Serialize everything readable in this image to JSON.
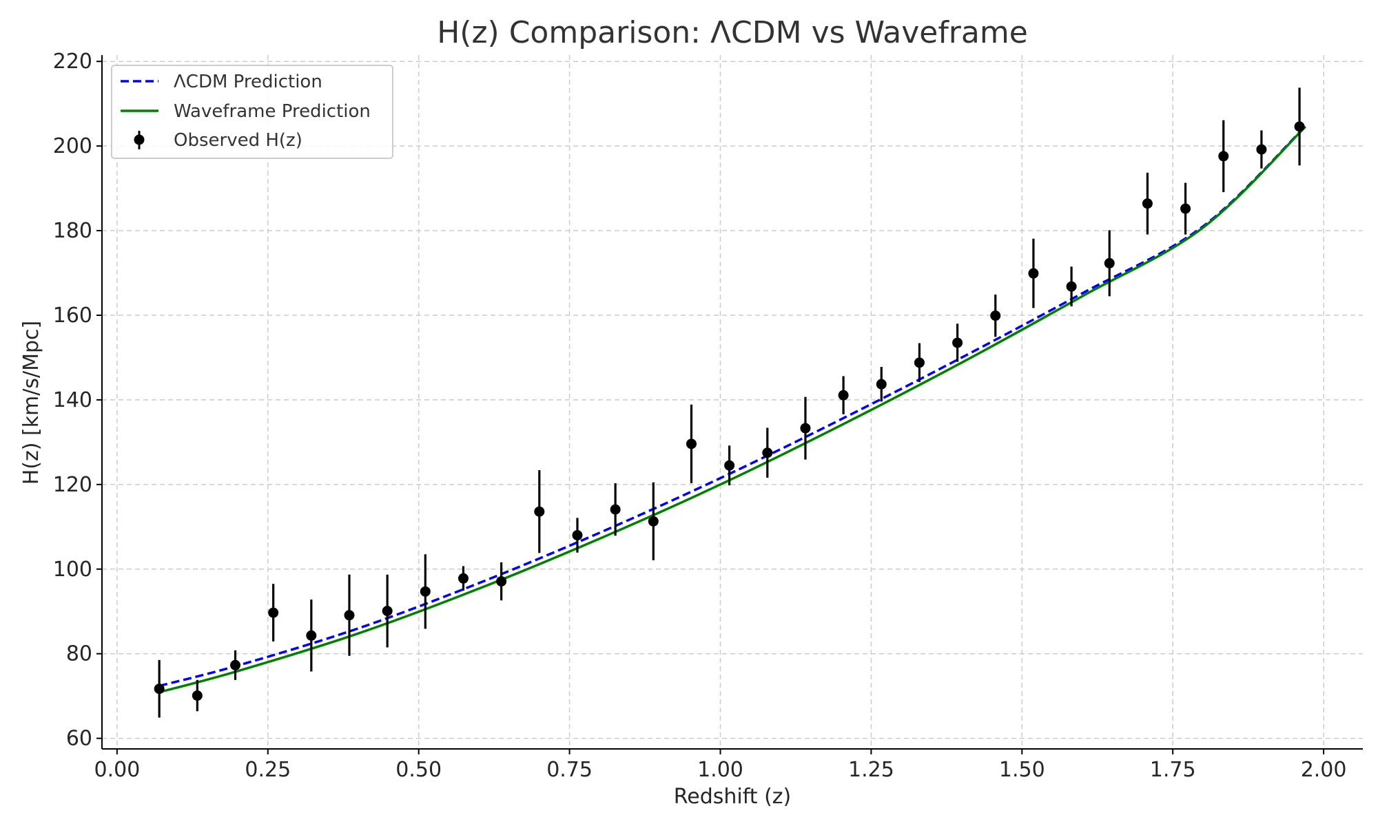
{
  "chart_data": {
    "type": "scatter",
    "title": "H(z) Comparison: ΛCDM vs Waveframe",
    "xlabel": "Redshift (z)",
    "ylabel": "H(z) [km/s/Mpc]",
    "xlim": [
      -0.025,
      2.065
    ],
    "ylim": [
      57.5,
      221.5
    ],
    "x_ticks": [
      0.0,
      0.25,
      0.5,
      0.75,
      1.0,
      1.25,
      1.5,
      1.75,
      2.0
    ],
    "x_tick_labels": [
      "0.00",
      "0.25",
      "0.50",
      "0.75",
      "1.00",
      "1.25",
      "1.50",
      "1.75",
      "2.00"
    ],
    "y_ticks": [
      60,
      80,
      100,
      120,
      140,
      160,
      180,
      200,
      220
    ],
    "y_tick_labels": [
      "60",
      "80",
      "100",
      "120",
      "140",
      "160",
      "180",
      "200",
      "220"
    ],
    "grid": true,
    "legend_position": "top-left",
    "series": [
      {
        "name": "ΛCDM Prediction",
        "kind": "line",
        "style": "dashed",
        "color": "#0000ff",
        "x": [
          0.07,
          0.2,
          0.4,
          0.6,
          0.8,
          1.0,
          1.2,
          1.4,
          1.6,
          1.8,
          1.97
        ],
        "y": [
          72.4,
          77.2,
          86.0,
          96.7,
          108.6,
          121.5,
          135.4,
          150.0,
          165.2,
          181.0,
          204.7
        ]
      },
      {
        "name": "Waveframe Prediction",
        "kind": "line",
        "style": "solid",
        "color": "#008000",
        "x": [
          0.07,
          0.2,
          0.4,
          0.6,
          0.8,
          1.0,
          1.2,
          1.4,
          1.6,
          1.8,
          1.97
        ],
        "y": [
          70.9,
          75.9,
          84.8,
          95.4,
          107.2,
          120.0,
          134.0,
          148.8,
          164.5,
          180.7,
          204.6
        ]
      },
      {
        "name": "Observed H(z)",
        "kind": "errorbar",
        "color": "#000000",
        "x": [
          0.07,
          0.133,
          0.196,
          0.259,
          0.322,
          0.385,
          0.448,
          0.511,
          0.574,
          0.637,
          0.7,
          0.763,
          0.826,
          0.889,
          0.952,
          1.015,
          1.078,
          1.141,
          1.204,
          1.267,
          1.33,
          1.393,
          1.456,
          1.519,
          1.582,
          1.645,
          1.708,
          1.771,
          1.834,
          1.897,
          1.96
        ],
        "y": [
          71.7,
          70.1,
          77.3,
          89.7,
          84.3,
          89.1,
          90.1,
          94.7,
          97.8,
          97.1,
          113.6,
          108.0,
          114.1,
          111.3,
          129.6,
          124.5,
          127.5,
          133.3,
          141.1,
          143.7,
          148.8,
          153.5,
          159.9,
          169.9,
          166.8,
          172.3,
          186.4,
          185.2,
          197.6,
          199.2,
          204.6
        ],
        "yerr": [
          6.8,
          3.7,
          3.5,
          6.8,
          8.5,
          9.6,
          8.6,
          8.8,
          2.9,
          4.5,
          9.8,
          4.1,
          6.2,
          9.2,
          9.3,
          4.7,
          5.9,
          7.4,
          4.5,
          4.1,
          4.6,
          4.5,
          5.0,
          8.2,
          4.7,
          7.8,
          7.3,
          6.1,
          8.5,
          4.5,
          9.2
        ]
      }
    ]
  }
}
